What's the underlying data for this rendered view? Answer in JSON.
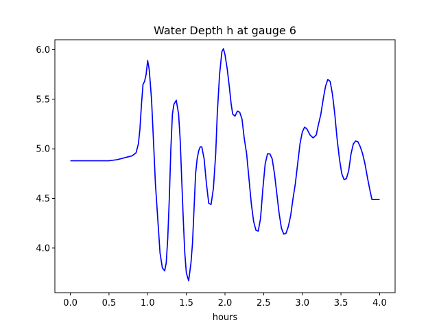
{
  "chart_data": {
    "type": "line",
    "title": "Water Depth h at gauge 6",
    "xlabel": "hours",
    "ylabel": "",
    "xlim": [
      -0.2,
      4.2
    ],
    "ylim": [
      3.55,
      6.1
    ],
    "xticks": [
      0.0,
      0.5,
      1.0,
      1.5,
      2.0,
      2.5,
      3.0,
      3.5,
      4.0
    ],
    "xtick_labels": [
      "0.0",
      "0.5",
      "1.0",
      "1.5",
      "2.0",
      "2.5",
      "3.0",
      "3.5",
      "4.0"
    ],
    "yticks": [
      4.0,
      4.5,
      5.0,
      5.5,
      6.0
    ],
    "ytick_labels": [
      "4.0",
      "4.5",
      "5.0",
      "5.5",
      "6.0"
    ],
    "grid": false,
    "series": [
      {
        "color": "#0000ff",
        "x": [
          0.0,
          0.1,
          0.2,
          0.3,
          0.4,
          0.5,
          0.55,
          0.6,
          0.65,
          0.7,
          0.75,
          0.8,
          0.85,
          0.88,
          0.9,
          0.92,
          0.94,
          0.96,
          0.98,
          1.0,
          1.02,
          1.05,
          1.08,
          1.1,
          1.13,
          1.16,
          1.19,
          1.22,
          1.24,
          1.26,
          1.28,
          1.3,
          1.32,
          1.34,
          1.37,
          1.4,
          1.42,
          1.44,
          1.46,
          1.48,
          1.5,
          1.53,
          1.56,
          1.58,
          1.6,
          1.62,
          1.64,
          1.66,
          1.68,
          1.7,
          1.73,
          1.76,
          1.79,
          1.82,
          1.85,
          1.88,
          1.9,
          1.93,
          1.96,
          1.98,
          2.0,
          2.03,
          2.06,
          2.08,
          2.1,
          2.13,
          2.16,
          2.19,
          2.22,
          2.25,
          2.28,
          2.31,
          2.34,
          2.37,
          2.4,
          2.43,
          2.46,
          2.49,
          2.52,
          2.55,
          2.58,
          2.61,
          2.64,
          2.67,
          2.7,
          2.73,
          2.76,
          2.79,
          2.82,
          2.85,
          2.88,
          2.91,
          2.94,
          2.97,
          3.0,
          3.03,
          3.06,
          3.1,
          3.14,
          3.18,
          3.21,
          3.24,
          3.27,
          3.3,
          3.33,
          3.36,
          3.39,
          3.42,
          3.45,
          3.48,
          3.51,
          3.54,
          3.57,
          3.6,
          3.63,
          3.66,
          3.69,
          3.72,
          3.75,
          3.78,
          3.81,
          3.84,
          3.87,
          3.9,
          3.93,
          3.96,
          4.0
        ],
        "y": [
          4.88,
          4.88,
          4.88,
          4.88,
          4.88,
          4.88,
          4.885,
          4.89,
          4.9,
          4.91,
          4.92,
          4.93,
          4.96,
          5.05,
          5.2,
          5.45,
          5.65,
          5.68,
          5.75,
          5.89,
          5.8,
          5.5,
          5.0,
          4.65,
          4.3,
          3.95,
          3.8,
          3.77,
          3.85,
          4.1,
          4.5,
          5.0,
          5.35,
          5.45,
          5.49,
          5.35,
          5.1,
          4.7,
          4.3,
          3.95,
          3.75,
          3.67,
          3.85,
          4.05,
          4.4,
          4.75,
          4.9,
          4.98,
          5.02,
          5.02,
          4.9,
          4.65,
          4.45,
          4.44,
          4.6,
          4.95,
          5.35,
          5.75,
          5.98,
          6.01,
          5.95,
          5.8,
          5.6,
          5.45,
          5.35,
          5.33,
          5.38,
          5.37,
          5.3,
          5.1,
          4.95,
          4.7,
          4.45,
          4.27,
          4.18,
          4.17,
          4.3,
          4.6,
          4.85,
          4.95,
          4.95,
          4.9,
          4.75,
          4.55,
          4.35,
          4.2,
          4.14,
          4.15,
          4.22,
          4.33,
          4.5,
          4.65,
          4.85,
          5.05,
          5.17,
          5.22,
          5.2,
          5.14,
          5.11,
          5.14,
          5.25,
          5.35,
          5.5,
          5.63,
          5.7,
          5.68,
          5.55,
          5.35,
          5.1,
          4.9,
          4.75,
          4.69,
          4.7,
          4.78,
          4.95,
          5.05,
          5.08,
          5.07,
          5.02,
          4.95,
          4.85,
          4.72,
          4.6,
          4.49,
          4.49,
          4.49,
          4.49
        ]
      }
    ]
  }
}
